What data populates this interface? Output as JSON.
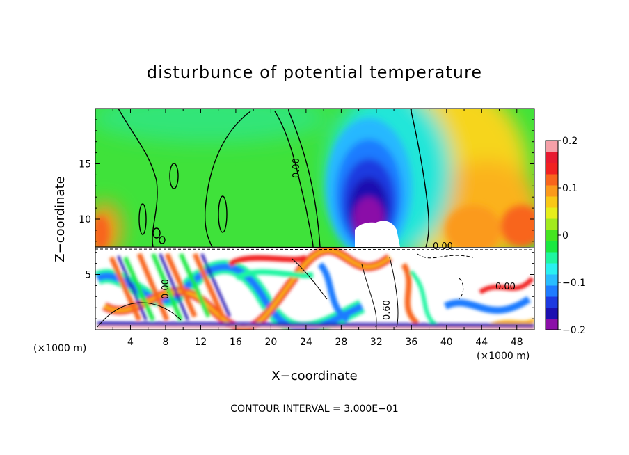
{
  "chart_data": {
    "type": "heatmap",
    "title": "disturbunce of potential temperature",
    "xlabel": "X−coordinate",
    "ylabel": "Z−coordinate",
    "x_unit_left": "(×1000 m)",
    "x_unit_right": "(×1000 m)",
    "x_ticks": [
      4,
      8,
      12,
      16,
      20,
      24,
      28,
      32,
      36,
      40,
      44,
      48
    ],
    "x_tick_labels": [
      "4",
      "8",
      "12",
      "16",
      "20",
      "24",
      "28",
      "32",
      "36",
      "40",
      "44",
      "48"
    ],
    "xlim": [
      0,
      50
    ],
    "y_ticks": [
      5,
      10,
      15
    ],
    "y_tick_labels": [
      "5",
      "10",
      "15"
    ],
    "ylim": [
      0,
      20
    ],
    "colorbar": {
      "range": [
        -0.2,
        0.2
      ],
      "ticks": [
        0.2,
        0.1,
        0,
        -0.1,
        -0.2
      ],
      "tick_labels": [
        "0.2",
        "0.1",
        "0",
        "−0.1",
        "−0.2"
      ],
      "colors": [
        "#8b0fa8",
        "#1c10b0",
        "#1d3ae0",
        "#1f7cff",
        "#29bdfd",
        "#29f0f0",
        "#1ef5a0",
        "#19e840",
        "#45e520",
        "#a2ea1e",
        "#e6ee1a",
        "#f8c816",
        "#fb9a1b",
        "#f8651c",
        "#f12121",
        "#e81a30",
        "#f5a0a8"
      ]
    },
    "contour_labels": [
      "0.00",
      "0.00",
      "0.00",
      "0.00",
      "0.60"
    ],
    "contour_interval_text": "CONTOUR INTERVAL = 3.000E−01"
  }
}
